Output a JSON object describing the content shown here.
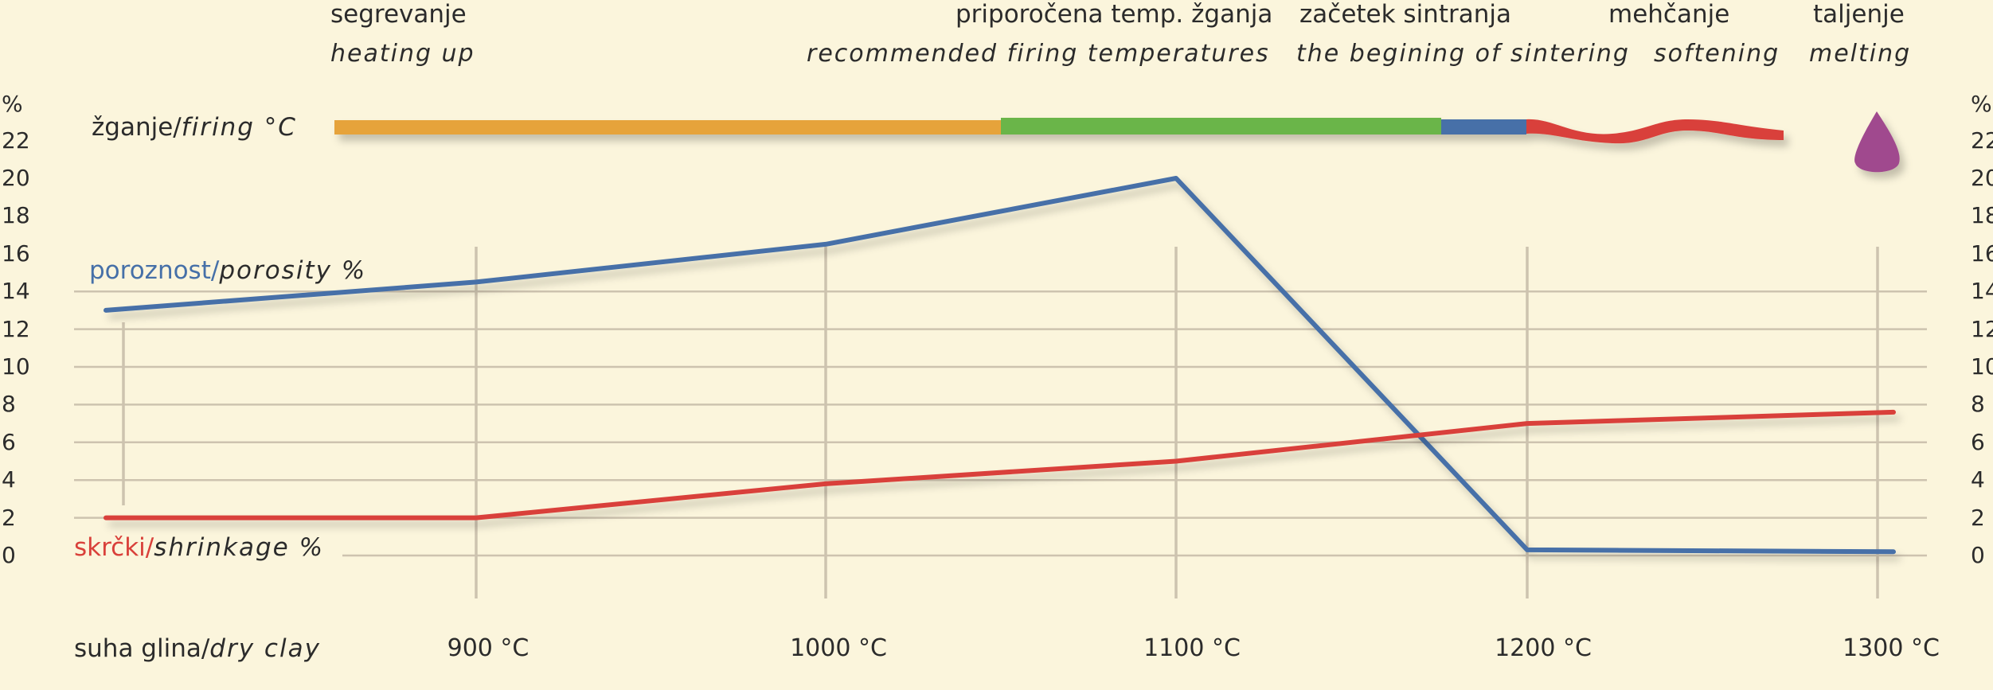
{
  "phases": [
    {
      "label": "segrevanje",
      "label_en": "heating up"
    },
    {
      "label": "priporočena temp. žganja",
      "label_en": "recommended firing temperatures"
    },
    {
      "label": "začetek sintranja",
      "label_en": "the begining of sintering"
    },
    {
      "label": "mehčanje",
      "label_en": "softening"
    },
    {
      "label": "taljenje",
      "label_en": "melting"
    }
  ],
  "firing": {
    "label": "žganje/",
    "label_en": "firing °C"
  },
  "porosity": {
    "label": "poroznost/",
    "label_en": "porosity %"
  },
  "shrinkage": {
    "label": "skrčki/",
    "label_en": "shrinkage %"
  },
  "dry_clay": {
    "label": "suha glina/",
    "label_en": "dry clay"
  },
  "y_unit": "%",
  "colors": {
    "orange": "#e6a33a",
    "green": "#6ab54a",
    "blue": "#4670a8",
    "red": "#d9403a",
    "purple": "#a04a8e",
    "grid": "#cdc3af",
    "porosity": "#4670a8",
    "shrinkage": "#d9403a"
  },
  "chart_data": {
    "type": "line",
    "categories": [
      "suha glina/dry clay",
      "900 °C",
      "1000 °C",
      "1100 °C",
      "1200 °C",
      "1300 °C"
    ],
    "x_tick_labels": [
      "900 °C",
      "1000 °C",
      "1100 °C",
      "1200 °C",
      "1300 °C"
    ],
    "y_ticks": [
      "0",
      "2",
      "4",
      "6",
      "8",
      "10",
      "12",
      "14",
      "16",
      "18",
      "20",
      "22"
    ],
    "ylim": [
      0,
      22
    ],
    "series": [
      {
        "name": "poroznost/porosity %",
        "values": [
          13,
          14.5,
          16.5,
          20,
          0.3,
          0.2
        ]
      },
      {
        "name": "skrčki/shrinkage %",
        "values": [
          2,
          2,
          3.8,
          5,
          7,
          7.6
        ]
      }
    ],
    "grid": "horizontal and vertical"
  }
}
